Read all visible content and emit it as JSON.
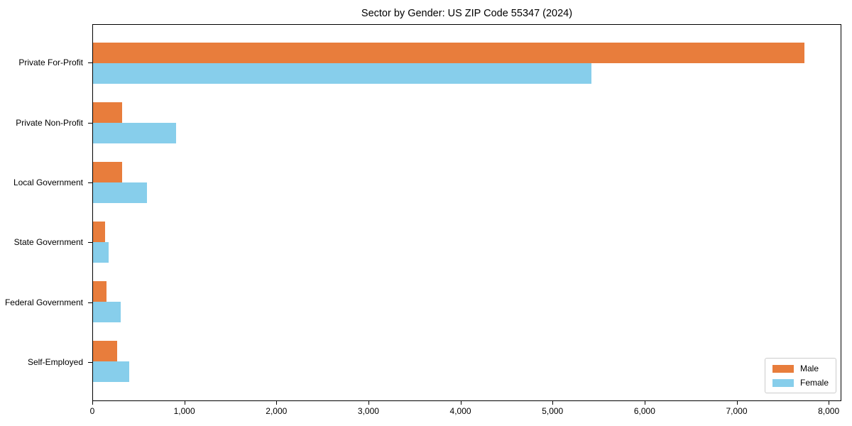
{
  "figure": {
    "background": "#ffffff",
    "border_color": "#000000"
  },
  "chart_data": {
    "type": "bar",
    "orientation": "horizontal",
    "title": "Sector by Gender: US ZIP Code 55347 (2024)",
    "categories": [
      "Private For-Profit",
      "Private Non-Profit",
      "Local Government",
      "State Government",
      "Federal Government",
      "Self-Employed"
    ],
    "series": [
      {
        "name": "Male",
        "color": "#E87D3C",
        "values": [
          7740,
          320,
          320,
          130,
          150,
          260
        ]
      },
      {
        "name": "Female",
        "color": "#87CEEB",
        "values": [
          5420,
          900,
          590,
          170,
          300,
          390
        ]
      }
    ],
    "xlabel": "",
    "ylabel": "",
    "xlim": [
      0,
      8130
    ],
    "xticks": {
      "values": [
        0,
        1000,
        2000,
        3000,
        4000,
        5000,
        6000,
        7000,
        8000
      ],
      "labels": [
        "0",
        "1,000",
        "2,000",
        "3,000",
        "4,000",
        "5,000",
        "6,000",
        "7,000",
        "8,000"
      ]
    },
    "legend_position": "lower right",
    "grid": false
  }
}
